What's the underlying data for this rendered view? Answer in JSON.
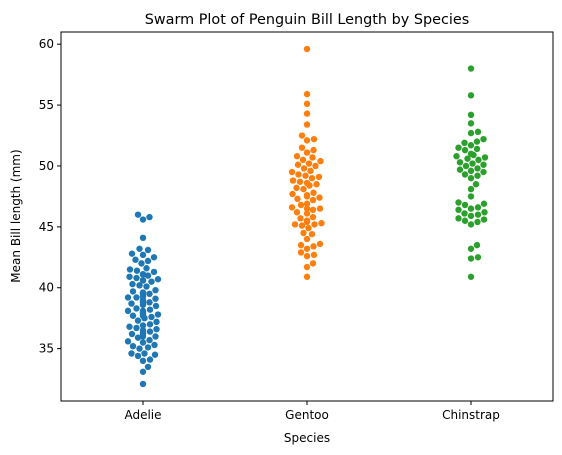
{
  "chart_data": {
    "type": "scatter",
    "title": "Swarm Plot of Penguin Bill Length by Species",
    "xlabel": "Species",
    "ylabel": "Mean Bill length (mm)",
    "categories": [
      "Adelie",
      "Gentoo",
      "Chinstrap"
    ],
    "ylim": [
      30.7,
      61.0
    ],
    "yticks": [
      35,
      40,
      45,
      50,
      55,
      60
    ],
    "grid": false,
    "legend": "none",
    "series": [
      {
        "category": "Adelie",
        "color": "#1f77b4",
        "values": [
          32.1,
          33.1,
          33.5,
          34.0,
          34.1,
          34.4,
          34.5,
          34.6,
          34.6,
          35.0,
          35.1,
          35.2,
          35.3,
          35.5,
          35.6,
          35.7,
          35.9,
          36.0,
          36.0,
          36.2,
          36.2,
          36.3,
          36.4,
          36.5,
          36.6,
          36.7,
          36.8,
          36.9,
          37.0,
          37.2,
          37.3,
          37.5,
          37.6,
          37.7,
          37.7,
          37.8,
          37.8,
          37.9,
          38.0,
          38.1,
          38.1,
          38.2,
          38.3,
          38.5,
          38.6,
          38.6,
          38.7,
          38.8,
          38.8,
          38.9,
          39.0,
          39.1,
          39.2,
          39.2,
          39.3,
          39.5,
          39.5,
          39.6,
          39.6,
          39.7,
          39.8,
          40.1,
          40.2,
          40.3,
          40.5,
          40.6,
          40.6,
          40.7,
          40.8,
          40.9,
          41.0,
          41.1,
          41.1,
          41.1,
          41.3,
          41.4,
          41.5,
          41.6,
          42.0,
          42.2,
          42.3,
          42.5,
          42.7,
          42.8,
          43.1,
          43.2,
          44.1,
          45.6,
          45.8,
          46.0
        ]
      },
      {
        "category": "Gentoo",
        "color": "#ff7f0e",
        "values": [
          40.9,
          41.7,
          42.0,
          42.6,
          42.7,
          42.9,
          43.2,
          43.4,
          43.5,
          43.6,
          44.0,
          44.4,
          44.5,
          44.9,
          45.1,
          45.2,
          45.2,
          45.3,
          45.4,
          45.5,
          45.5,
          45.7,
          45.8,
          46.1,
          46.2,
          46.4,
          46.5,
          46.5,
          46.6,
          46.8,
          46.9,
          47.2,
          47.3,
          47.4,
          47.5,
          47.6,
          47.7,
          47.8,
          48.1,
          48.2,
          48.4,
          48.5,
          48.6,
          48.7,
          48.8,
          49.0,
          49.1,
          49.2,
          49.3,
          49.5,
          49.6,
          49.8,
          50.0,
          50.1,
          50.2,
          50.4,
          50.5,
          50.7,
          50.8,
          51.1,
          51.3,
          51.5,
          52.1,
          52.2,
          52.5,
          53.4,
          54.3,
          55.1,
          55.9,
          59.6
        ]
      },
      {
        "category": "Chinstrap",
        "color": "#2ca02c",
        "values": [
          40.9,
          42.4,
          42.5,
          43.2,
          43.5,
          45.2,
          45.4,
          45.5,
          45.6,
          45.7,
          45.9,
          46.0,
          46.1,
          46.2,
          46.4,
          46.5,
          46.6,
          46.8,
          46.9,
          47.0,
          47.5,
          48.1,
          48.5,
          49.0,
          49.2,
          49.3,
          49.5,
          49.6,
          49.7,
          49.8,
          50.0,
          50.1,
          50.2,
          50.3,
          50.5,
          50.6,
          50.7,
          50.8,
          50.9,
          51.0,
          51.3,
          51.4,
          51.5,
          51.7,
          51.9,
          52.0,
          52.2,
          52.7,
          52.8,
          53.5,
          54.2,
          55.8,
          58.0
        ]
      }
    ]
  }
}
